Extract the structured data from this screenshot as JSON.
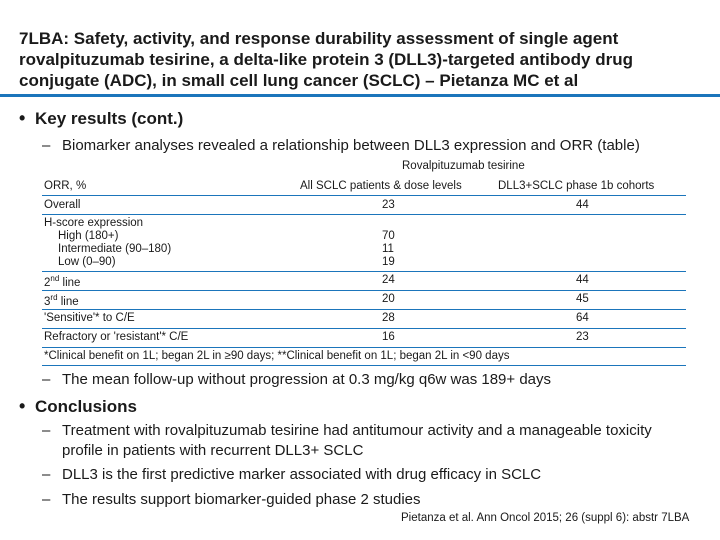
{
  "title": "7LBA: Safety, activity, and response durability assessment of single agent rovalpituzumab tesirine, a delta-like protein 3 (DLL3)-targeted antibody drug conjugate (ADC), in small cell lung cancer (SCLC) – Pietanza MC et al",
  "bullet1": "Key results (cont.)",
  "sub1": "Biomarker analyses revealed a relationship between DLL3 expression and ORR (table)",
  "table": {
    "group_header": "Rovalpituzumab tesirine",
    "col0": "ORR, %",
    "col1": "All SCLC patients & dose levels",
    "col2": "DLL3+SCLC phase 1b cohorts",
    "overall": {
      "label": "Overall",
      "v1": "23",
      "v2": "44"
    },
    "hscore": {
      "label": "H-score expression",
      "high": {
        "label": "High (180+)",
        "v1": "70"
      },
      "intermediate": {
        "label": "Intermediate (90–180)",
        "v1": "11"
      },
      "low": {
        "label": "Low (0–90)",
        "v1": "19"
      }
    },
    "second": {
      "num": "2",
      "sup": "nd",
      "rest": " line",
      "v1": "24",
      "v2": "44"
    },
    "third": {
      "num": "3",
      "sup": "rd",
      "rest": " line",
      "v1": "20",
      "v2": "45"
    },
    "sensitive": {
      "label": "'Sensitive'* to C/E",
      "v1": "28",
      "v2": "64"
    },
    "refractory": {
      "label": "Refractory or 'resistant'* C/E",
      "v1": "16",
      "v2": "23"
    },
    "footnote": "*Clinical benefit on 1L; began 2L in ≥90 days; **Clinical benefit on 1L; began 2L in <90 days"
  },
  "sub2": "The mean follow-up without progression at 0.3 mg/kg q6w was 189+ days",
  "bullet2": "Conclusions",
  "conc1_a": "Treatment with rovalpituzumab tesirine had antitumour activity and a manageable toxicity",
  "conc1_b": "profile in patients with recurrent DLL3+ SCLC",
  "conc2": "DLL3 is the first predictive marker associated with drug efficacy in SCLC",
  "conc3": "The results support biomarker-guided phase 2 studies",
  "dash": "–",
  "bullet_char": "•",
  "footer": "Pietanza et al. Ann Oncol 2015; 26 (suppl 6): abstr 7LBA",
  "colors": {
    "accent": "#1b75bb",
    "text": "#1a1a1a"
  }
}
